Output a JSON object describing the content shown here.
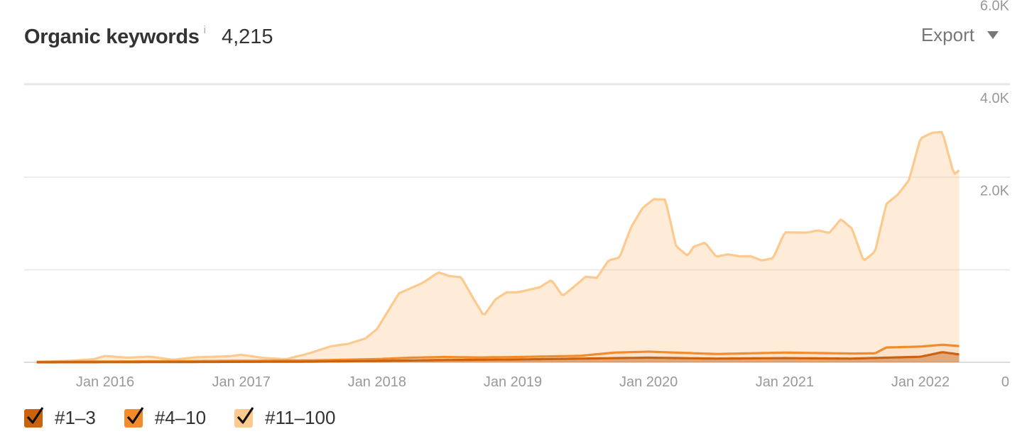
{
  "header": {
    "title": "Organic keywords",
    "info_icon": "info-icon",
    "info_glyph": "i",
    "count": "4,215",
    "export_label": "Export",
    "export_icon": "caret-down-icon"
  },
  "legend": [
    {
      "label": "#1–3",
      "color": "#c9630f"
    },
    {
      "label": "#4–10",
      "color": "#f28b2c"
    },
    {
      "label": "#11–100",
      "color": "#fcc98e"
    }
  ],
  "chart_data": {
    "type": "area",
    "stacked": true,
    "title": "Organic keywords",
    "xlabel": "",
    "ylabel": "",
    "ylim": [
      0,
      6000
    ],
    "y_ticks": [
      0,
      2000,
      4000,
      6000
    ],
    "y_tick_labels": [
      "0",
      "2.0K",
      "4.0K",
      "6.0K"
    ],
    "x_ticks": [
      "2016-01-01",
      "2017-01-01",
      "2018-01-01",
      "2019-01-01",
      "2020-01-01",
      "2021-01-01",
      "2022-01-01"
    ],
    "x_tick_labels": [
      "Jan 2016",
      "Jan 2017",
      "Jan 2018",
      "Jan 2019",
      "Jan 2020",
      "Jan 2021",
      "Jan 2022"
    ],
    "xlim": [
      "2015-06-01",
      "2022-05-01"
    ],
    "grid": true,
    "legend_position": "bottom-left",
    "series": [
      {
        "name": "#1–3",
        "color": "#c9630f",
        "x": [
          "2015-07-01",
          "2016-07-01",
          "2017-07-01",
          "2018-01-01",
          "2018-07-01",
          "2019-01-01",
          "2019-07-01",
          "2020-01-01",
          "2020-07-01",
          "2021-01-01",
          "2021-07-01",
          "2021-10-01",
          "2022-01-01",
          "2022-03-01",
          "2022-04-15"
        ],
        "values": [
          0,
          5,
          15,
          30,
          50,
          60,
          80,
          100,
          80,
          90,
          80,
          100,
          120,
          220,
          170
        ]
      },
      {
        "name": "#4–10",
        "color": "#f28b2c",
        "x": [
          "2015-07-01",
          "2016-07-01",
          "2017-07-01",
          "2018-01-01",
          "2018-04-01",
          "2018-07-01",
          "2018-10-01",
          "2019-07-01",
          "2019-10-01",
          "2020-01-01",
          "2020-07-01",
          "2021-01-01",
          "2021-07-01",
          "2021-09-01",
          "2021-10-01",
          "2022-01-01",
          "2022-03-01",
          "2022-04-15"
        ],
        "values": [
          10,
          20,
          25,
          40,
          60,
          65,
          50,
          60,
          120,
          130,
          100,
          120,
          110,
          100,
          220,
          220,
          160,
          180
        ]
      },
      {
        "name": "#11–100",
        "color": "#fcc98e",
        "x": [
          "2015-07-01",
          "2015-10-01",
          "2015-12-01",
          "2016-01-01",
          "2016-03-01",
          "2016-05-01",
          "2016-07-01",
          "2016-09-01",
          "2016-12-01",
          "2017-01-01",
          "2017-03-01",
          "2017-05-01",
          "2017-07-01",
          "2017-09-01",
          "2017-10-15",
          "2017-12-01",
          "2018-01-01",
          "2018-03-01",
          "2018-05-01",
          "2018-06-15",
          "2018-07-15",
          "2018-08-15",
          "2018-09-15",
          "2018-10-15",
          "2018-11-15",
          "2018-12-15",
          "2019-01-15",
          "2019-02-15",
          "2019-03-15",
          "2019-04-15",
          "2019-05-15",
          "2019-06-15",
          "2019-07-15",
          "2019-08-15",
          "2019-09-15",
          "2019-10-15",
          "2019-11-15",
          "2019-12-15",
          "2020-01-15",
          "2020-02-15",
          "2020-03-15",
          "2020-04-15",
          "2020-05-01",
          "2020-06-01",
          "2020-07-01",
          "2020-08-01",
          "2020-09-01",
          "2020-10-01",
          "2020-11-01",
          "2020-12-01",
          "2021-01-01",
          "2021-02-01",
          "2021-03-01",
          "2021-04-01",
          "2021-05-01",
          "2021-06-01",
          "2021-07-01",
          "2021-08-01",
          "2021-09-01",
          "2021-10-01",
          "2021-11-01",
          "2021-12-01",
          "2022-01-01",
          "2022-02-01",
          "2022-03-01",
          "2022-04-01",
          "2022-04-15"
        ],
        "values": [
          0,
          20,
          50,
          120,
          80,
          100,
          30,
          80,
          100,
          130,
          60,
          30,
          150,
          300,
          340,
          450,
          650,
          1400,
          1600,
          1830,
          1750,
          1730,
          1300,
          900,
          1250,
          1400,
          1400,
          1450,
          1500,
          1650,
          1300,
          1500,
          1700,
          1650,
          2000,
          2050,
          2700,
          3100,
          3300,
          3300,
          2300,
          2100,
          2300,
          2400,
          2100,
          2150,
          2100,
          2100,
          2000,
          2050,
          2600,
          2600,
          2600,
          2650,
          2600,
          2900,
          2700,
          2000,
          2200,
          3100,
          3300,
          3600,
          4500,
          4600,
          4600,
          3700,
          3800
        ]
      }
    ]
  }
}
